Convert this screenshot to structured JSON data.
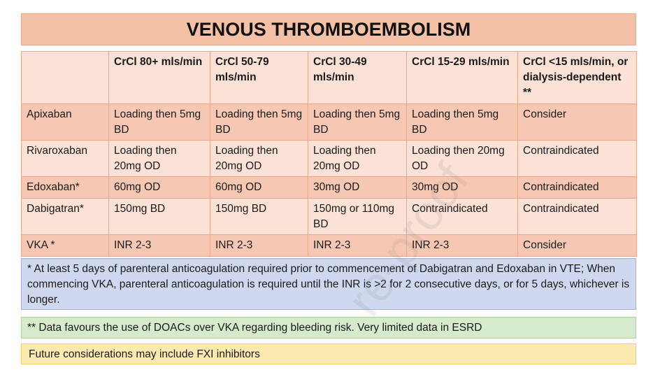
{
  "title": "VENOUS THROMBOEMBOLISM",
  "table": {
    "headers": [
      "",
      "CrCl 80+ mls/min",
      "CrCl 50-79 mls/min",
      "CrCl 30-49 mls/min",
      "CrCl 15-29 mls/min",
      "CrCl <15 mls/min, or dialysis-dependent **"
    ],
    "rows": [
      [
        "Apixaban",
        "Loading then 5mg BD",
        "Loading then 5mg BD",
        "Loading then 5mg BD",
        "Loading then 5mg BD",
        "Consider"
      ],
      [
        "Rivaroxaban",
        "Loading then 20mg OD",
        "Loading then 20mg OD",
        "Loading then 20mg OD",
        "Loading then 20mg OD",
        "Contraindicated"
      ],
      [
        "Edoxaban*",
        "60mg OD",
        "60mg OD",
        "30mg OD",
        "30mg OD",
        "Contraindicated"
      ],
      [
        "Dabigatran*",
        "150mg BD",
        "150mg BD",
        "150mg or 110mg BD",
        "Contraindicated",
        "Contraindicated"
      ],
      [
        "VKA *",
        "INR 2-3",
        "INR 2-3",
        "INR 2-3",
        "INR 2-3",
        "Consider"
      ]
    ]
  },
  "notes": {
    "blue": "* At least 5 days of parenteral anticoagulation required prior to commencement of Dabigatran and Edoxaban in VTE; When commencing VKA, parenteral anticoagulation is required until the INR is >2 for 2 consecutive days, or for 5 days, whichever is longer.",
    "green": "** Data favours the use of DOACs over VKA regarding bleeding risk. Very limited data in ESRD",
    "yellow": "Future considerations may include FXI inhibitors"
  },
  "watermark": "re-proof"
}
